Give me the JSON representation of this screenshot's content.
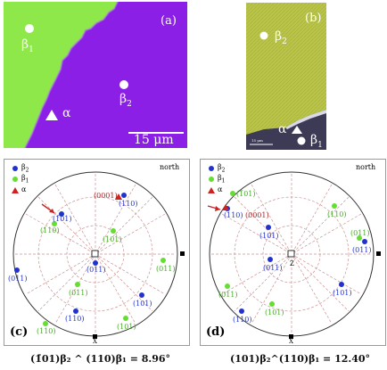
{
  "panel_a": {
    "label": "(a)",
    "beta1": "β",
    "beta1_sub": "1",
    "beta2": "β",
    "beta2_sub": "2",
    "alpha": "α",
    "scalebar": "15 μm",
    "colors": {
      "green": "#8fe84a",
      "purple": "#8b1fe6"
    }
  },
  "panel_b": {
    "label": "(b)",
    "beta2": "β",
    "beta2_sub": "2",
    "alpha": "α",
    "beta1": "β",
    "beta1_sub": "1",
    "scalebar": "15 μm",
    "colors": {
      "yellow_green": "#b9c448",
      "dark": "#3d3a55"
    }
  },
  "panel_c": {
    "label": "(c)",
    "north": "north",
    "x_label": "X",
    "center_label": "(011)",
    "legend": [
      {
        "symbol": "blue-dot",
        "text": "β",
        "sub": "2"
      },
      {
        "symbol": "green-dot",
        "text": "β",
        "sub": "1"
      },
      {
        "symbol": "red-triangle",
        "text": "α",
        "sub": ""
      }
    ],
    "poles": [
      {
        "label": "(0001)",
        "color": "red"
      },
      {
        "label": "(110)",
        "color": "blue"
      },
      {
        "label": "(1̄01)",
        "color": "blue"
      },
      {
        "label": "(110)",
        "color": "green"
      },
      {
        "label": "(101)",
        "color": "green"
      },
      {
        "label": "(011)",
        "color": "green"
      },
      {
        "label": "(011)",
        "color": "blue"
      },
      {
        "label": "(011)",
        "color": "green"
      },
      {
        "label": "(101)",
        "color": "blue"
      },
      {
        "label": "(110)",
        "color": "blue"
      },
      {
        "label": "(101)",
        "color": "green"
      },
      {
        "label": "(110)",
        "color": "green"
      }
    ]
  },
  "panel_d": {
    "label": "(d)",
    "north": "north",
    "x_label": "X",
    "center_label": "Z",
    "legend": [
      {
        "symbol": "blue-dot",
        "text": "β",
        "sub": "2"
      },
      {
        "symbol": "green-dot",
        "text": "β",
        "sub": "1"
      },
      {
        "symbol": "red-triangle",
        "text": "α",
        "sub": ""
      }
    ],
    "poles": [
      {
        "label": "(1̄01)",
        "color": "green"
      },
      {
        "label": "(110)",
        "color": "blue"
      },
      {
        "label": "(0001)",
        "color": "red"
      },
      {
        "label": "(110)",
        "color": "green"
      },
      {
        "label": "(101)",
        "color": "blue"
      },
      {
        "label": "(011)",
        "color": "green"
      },
      {
        "label": "(011)",
        "color": "blue"
      },
      {
        "label": "(011)",
        "color": "blue"
      },
      {
        "label": "(011)",
        "color": "green"
      },
      {
        "label": "(110)",
        "color": "blue"
      },
      {
        "label": "(101)",
        "color": "green"
      },
      {
        "label": "(101)",
        "color": "blue"
      }
    ]
  },
  "captions": {
    "left": "(1̄01)β₂ ^ (110)β₁ = 8.96°",
    "right": "(101)β₂^(110)β₁ = 12.40°"
  }
}
